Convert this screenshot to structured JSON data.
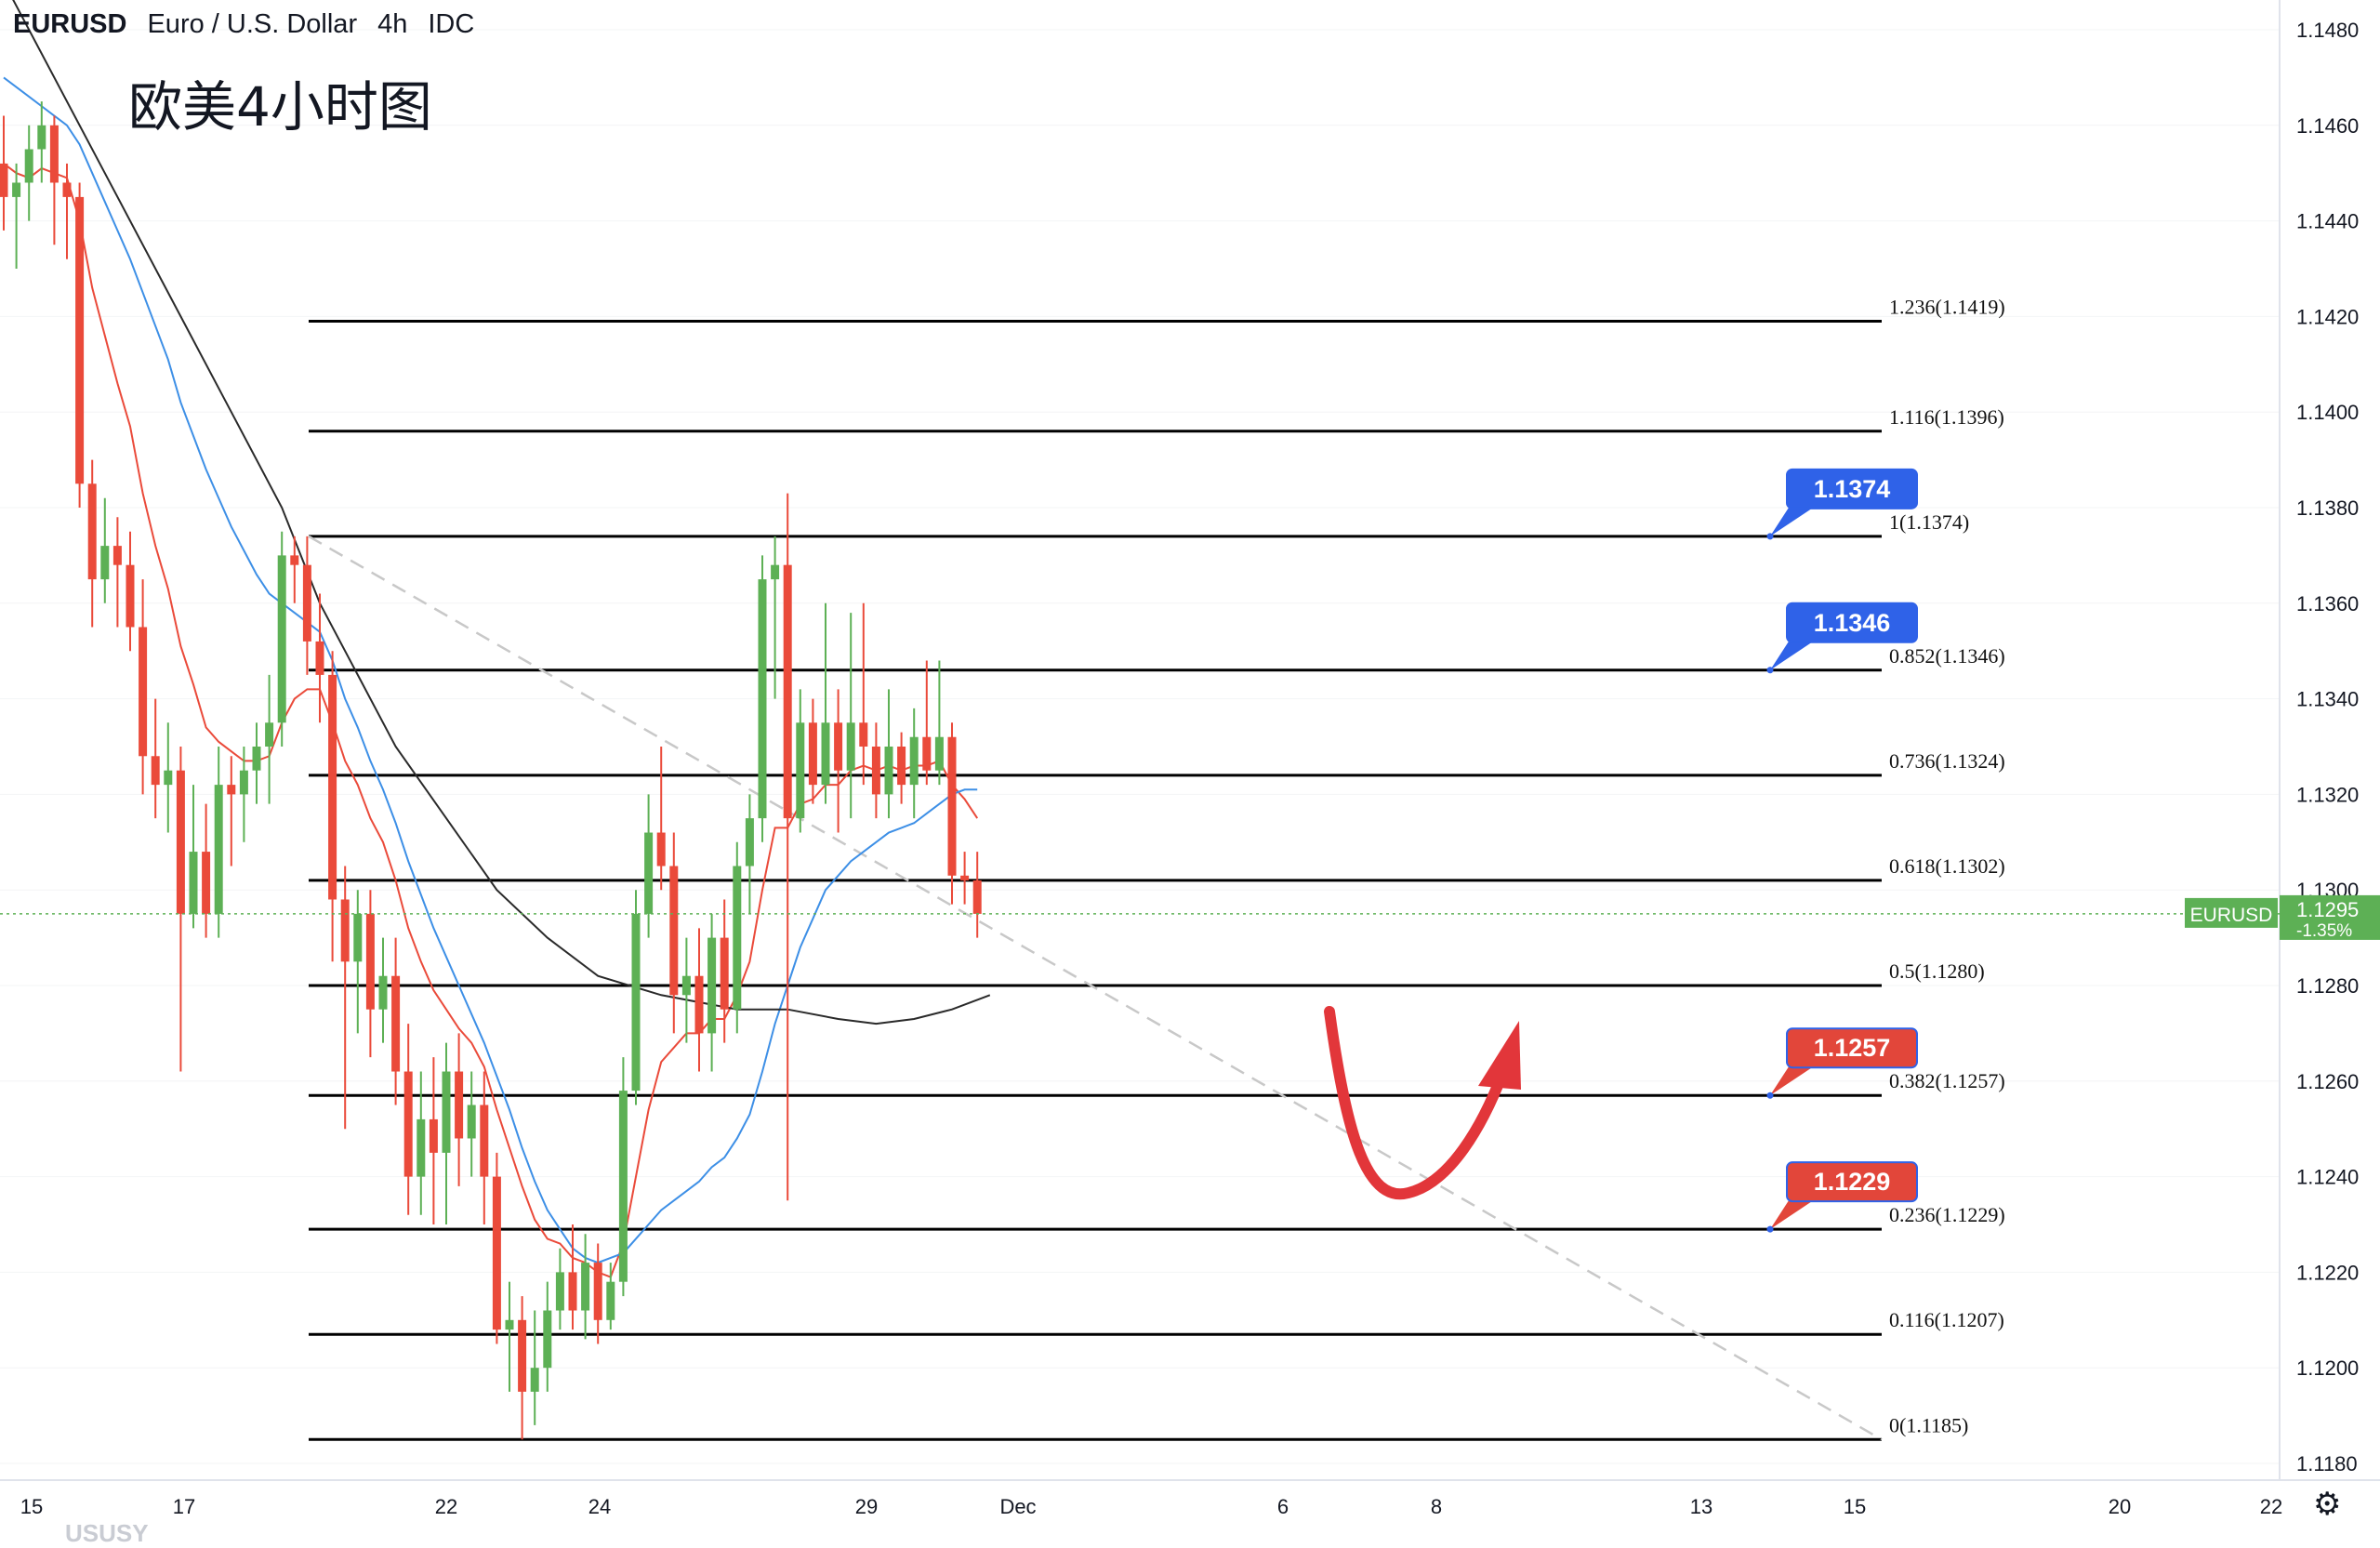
{
  "header": {
    "symbol": "EURUSD",
    "description": "Euro / U.S. Dollar",
    "interval": "4h",
    "source": "IDC"
  },
  "annotation_text": "欧美4小时图",
  "watermark": "USUSY",
  "settings_icon": "gear-icon",
  "colors": {
    "up": "#5db055",
    "down": "#ea4a3a",
    "ma_red": "#ea4a3a",
    "ma_blue": "#3d8fe6",
    "ma_black": "#2a2a2a",
    "fib_line": "#000000",
    "badge_blue": "#2f62e8",
    "badge_red": "#e2463a",
    "price_green": "#5db055"
  },
  "chart_data": {
    "type": "candlestick",
    "price_axis": {
      "min": 1.117,
      "max": 1.149,
      "ticks": [
        "1.1480",
        "1.1460",
        "1.1440",
        "1.1420",
        "1.1400",
        "1.1380",
        "1.1360",
        "1.1340",
        "1.1320",
        "1.1300",
        "1.1280",
        "1.1260",
        "1.1240",
        "1.1220",
        "1.1200",
        "1.1180"
      ]
    },
    "time_axis": {
      "labels": [
        "15",
        "17",
        "22",
        "24",
        "29",
        "Dec",
        "6",
        "8",
        "13",
        "15",
        "20",
        "22"
      ]
    },
    "candles": [
      [
        1.1452,
        1.1462,
        1.1438,
        1.1445
      ],
      [
        1.1445,
        1.1452,
        1.143,
        1.1448
      ],
      [
        1.1448,
        1.146,
        1.144,
        1.1455
      ],
      [
        1.1455,
        1.1465,
        1.1448,
        1.146
      ],
      [
        1.146,
        1.1462,
        1.1435,
        1.1448
      ],
      [
        1.1448,
        1.1452,
        1.1432,
        1.1445
      ],
      [
        1.1445,
        1.1448,
        1.138,
        1.1385
      ],
      [
        1.1385,
        1.139,
        1.1355,
        1.1365
      ],
      [
        1.1365,
        1.1382,
        1.136,
        1.1372
      ],
      [
        1.1372,
        1.1378,
        1.1355,
        1.1368
      ],
      [
        1.1368,
        1.1375,
        1.135,
        1.1355
      ],
      [
        1.1355,
        1.1365,
        1.132,
        1.1328
      ],
      [
        1.1328,
        1.134,
        1.1315,
        1.1322
      ],
      [
        1.1322,
        1.1335,
        1.1312,
        1.1325
      ],
      [
        1.1325,
        1.133,
        1.1262,
        1.1295
      ],
      [
        1.1295,
        1.1322,
        1.1292,
        1.1308
      ],
      [
        1.1308,
        1.1318,
        1.129,
        1.1295
      ],
      [
        1.1295,
        1.133,
        1.129,
        1.1322
      ],
      [
        1.1322,
        1.1328,
        1.1305,
        1.132
      ],
      [
        1.132,
        1.133,
        1.131,
        1.1325
      ],
      [
        1.1325,
        1.1335,
        1.1318,
        1.133
      ],
      [
        1.133,
        1.1345,
        1.1318,
        1.1335
      ],
      [
        1.1335,
        1.1375,
        1.133,
        1.137
      ],
      [
        1.137,
        1.1374,
        1.136,
        1.1368
      ],
      [
        1.1368,
        1.1374,
        1.1345,
        1.1352
      ],
      [
        1.1352,
        1.1362,
        1.1335,
        1.1345
      ],
      [
        1.1345,
        1.135,
        1.1285,
        1.1298
      ],
      [
        1.1298,
        1.1305,
        1.125,
        1.1285
      ],
      [
        1.1285,
        1.13,
        1.127,
        1.1295
      ],
      [
        1.1295,
        1.13,
        1.1265,
        1.1275
      ],
      [
        1.1275,
        1.129,
        1.1268,
        1.1282
      ],
      [
        1.1282,
        1.129,
        1.1255,
        1.1262
      ],
      [
        1.1262,
        1.1272,
        1.1232,
        1.124
      ],
      [
        1.124,
        1.1262,
        1.1232,
        1.1252
      ],
      [
        1.1252,
        1.1265,
        1.123,
        1.1245
      ],
      [
        1.1245,
        1.1268,
        1.123,
        1.1262
      ],
      [
        1.1262,
        1.127,
        1.1238,
        1.1248
      ],
      [
        1.1248,
        1.1262,
        1.124,
        1.1255
      ],
      [
        1.1255,
        1.1262,
        1.123,
        1.124
      ],
      [
        1.124,
        1.1245,
        1.1205,
        1.1208
      ],
      [
        1.1208,
        1.1218,
        1.1195,
        1.121
      ],
      [
        1.121,
        1.1215,
        1.1185,
        1.1195
      ],
      [
        1.1195,
        1.1212,
        1.1188,
        1.12
      ],
      [
        1.12,
        1.1218,
        1.1195,
        1.1212
      ],
      [
        1.1212,
        1.1225,
        1.1208,
        1.122
      ],
      [
        1.122,
        1.123,
        1.1208,
        1.1212
      ],
      [
        1.1212,
        1.1228,
        1.1206,
        1.1222
      ],
      [
        1.1222,
        1.1226,
        1.1205,
        1.121
      ],
      [
        1.121,
        1.1222,
        1.1208,
        1.1218
      ],
      [
        1.1218,
        1.1265,
        1.1215,
        1.1258
      ],
      [
        1.1258,
        1.13,
        1.1255,
        1.1295
      ],
      [
        1.1295,
        1.132,
        1.129,
        1.1312
      ],
      [
        1.1312,
        1.133,
        1.13,
        1.1305
      ],
      [
        1.1305,
        1.1312,
        1.127,
        1.1278
      ],
      [
        1.1278,
        1.129,
        1.1268,
        1.1282
      ],
      [
        1.1282,
        1.1292,
        1.1262,
        1.127
      ],
      [
        1.127,
        1.1295,
        1.1262,
        1.129
      ],
      [
        1.129,
        1.1298,
        1.1268,
        1.1275
      ],
      [
        1.1275,
        1.131,
        1.127,
        1.1305
      ],
      [
        1.1305,
        1.132,
        1.1295,
        1.1315
      ],
      [
        1.1315,
        1.137,
        1.131,
        1.1365
      ],
      [
        1.1365,
        1.1374,
        1.134,
        1.1368
      ],
      [
        1.1368,
        1.1383,
        1.1235,
        1.1315
      ],
      [
        1.1315,
        1.1342,
        1.1312,
        1.1335
      ],
      [
        1.1335,
        1.134,
        1.1318,
        1.1322
      ],
      [
        1.1322,
        1.136,
        1.1318,
        1.1335
      ],
      [
        1.1335,
        1.1342,
        1.1312,
        1.1325
      ],
      [
        1.1325,
        1.1358,
        1.1315,
        1.1335
      ],
      [
        1.1335,
        1.136,
        1.1322,
        1.133
      ],
      [
        1.133,
        1.1335,
        1.1315,
        1.132
      ],
      [
        1.132,
        1.1342,
        1.1315,
        1.133
      ],
      [
        1.133,
        1.1333,
        1.1318,
        1.1322
      ],
      [
        1.1322,
        1.1338,
        1.1315,
        1.1332
      ],
      [
        1.1332,
        1.1348,
        1.1322,
        1.1325
      ],
      [
        1.1325,
        1.1348,
        1.1322,
        1.1332
      ],
      [
        1.1332,
        1.1335,
        1.1297,
        1.1303
      ],
      [
        1.1303,
        1.1308,
        1.1297,
        1.1302
      ],
      [
        1.1302,
        1.1308,
        1.129,
        1.1295
      ]
    ],
    "moving_averages": [
      {
        "color_key": "ma_red",
        "values": [
          1.1452,
          1.145,
          1.1449,
          1.1451,
          1.145,
          1.1449,
          1.144,
          1.1426,
          1.1416,
          1.1406,
          1.1397,
          1.1383,
          1.1372,
          1.1363,
          1.1351,
          1.1343,
          1.1334,
          1.1331,
          1.1329,
          1.1327,
          1.1327,
          1.1328,
          1.1335,
          1.134,
          1.1342,
          1.1342,
          1.1335,
          1.1327,
          1.1322,
          1.1315,
          1.131,
          1.1302,
          1.1292,
          1.1285,
          1.1279,
          1.1275,
          1.1271,
          1.1268,
          1.1263,
          1.1254,
          1.1246,
          1.1238,
          1.1231,
          1.1227,
          1.1226,
          1.1223,
          1.1222,
          1.122,
          1.1219,
          1.1226,
          1.124,
          1.1254,
          1.1264,
          1.1267,
          1.127,
          1.127,
          1.1273,
          1.1273,
          1.1278,
          1.1285,
          1.13,
          1.1313,
          1.1313,
          1.1318,
          1.1319,
          1.1322,
          1.1322,
          1.1325,
          1.1326,
          1.1325,
          1.1326,
          1.1325,
          1.1326,
          1.1326,
          1.1327,
          1.1322,
          1.1319,
          1.1315
        ]
      },
      {
        "color_key": "ma_blue",
        "values": [
          1.147,
          1.1468,
          1.1466,
          1.1464,
          1.1462,
          1.146,
          1.1456,
          1.145,
          1.1444,
          1.1438,
          1.1432,
          1.1425,
          1.1418,
          1.1411,
          1.1402,
          1.1395,
          1.1388,
          1.1382,
          1.1376,
          1.1371,
          1.1366,
          1.1362,
          1.136,
          1.1358,
          1.1356,
          1.1354,
          1.1348,
          1.134,
          1.1334,
          1.1327,
          1.1321,
          1.1314,
          1.1306,
          1.1299,
          1.1292,
          1.1286,
          1.128,
          1.1274,
          1.1268,
          1.1261,
          1.1254,
          1.1246,
          1.1239,
          1.1233,
          1.1229,
          1.1225,
          1.1223,
          1.1222,
          1.1223,
          1.1224,
          1.1227,
          1.123,
          1.1233,
          1.1235,
          1.1237,
          1.1239,
          1.1242,
          1.1244,
          1.1248,
          1.1253,
          1.1262,
          1.1272,
          1.128,
          1.1288,
          1.1294,
          1.13,
          1.1303,
          1.1306,
          1.1308,
          1.131,
          1.1312,
          1.1313,
          1.1314,
          1.1316,
          1.1318,
          1.132,
          1.1321,
          1.1321
        ]
      },
      {
        "color_key": "ma_black",
        "points": [
          [
            1.149,
            0
          ],
          [
            1.145,
            8
          ],
          [
            1.142,
            14
          ],
          [
            1.14,
            18
          ],
          [
            1.138,
            22
          ],
          [
            1.136,
            25
          ],
          [
            1.1345,
            28
          ],
          [
            1.133,
            31
          ],
          [
            1.1315,
            35
          ],
          [
            1.13,
            39
          ],
          [
            1.129,
            43
          ],
          [
            1.1282,
            47
          ],
          [
            1.1278,
            52
          ],
          [
            1.1275,
            58
          ],
          [
            1.1275,
            62
          ],
          [
            1.1273,
            66
          ],
          [
            1.1272,
            69
          ],
          [
            1.1273,
            72
          ],
          [
            1.1275,
            75
          ],
          [
            1.1278,
            78
          ]
        ]
      }
    ],
    "trendline": {
      "from_price": 1.1374,
      "to_price": 1.1185,
      "style": "dashed",
      "color": "#c8c8c8"
    },
    "fibonacci": [
      {
        "label": "1.236(1.1419)",
        "price": 1.1419
      },
      {
        "label": "1.116(1.1396)",
        "price": 1.1396
      },
      {
        "label": "1(1.1374)",
        "price": 1.1374
      },
      {
        "label": "0.852(1.1346)",
        "price": 1.1346
      },
      {
        "label": "0.736(1.1324)",
        "price": 1.1324
      },
      {
        "label": "0.618(1.1302)",
        "price": 1.1302
      },
      {
        "label": "0.5(1.1280)",
        "price": 1.128
      },
      {
        "label": "0.382(1.1257)",
        "price": 1.1257
      },
      {
        "label": "0.236(1.1229)",
        "price": 1.1229
      },
      {
        "label": "0.116(1.1207)",
        "price": 1.1207
      },
      {
        "label": "0(1.1185)",
        "price": 1.1185
      }
    ],
    "badges": [
      {
        "text": "1.1374",
        "price": 1.1374,
        "color_key": "badge_blue"
      },
      {
        "text": "1.1346",
        "price": 1.1346,
        "color_key": "badge_blue"
      },
      {
        "text": "1.1257",
        "price": 1.1257,
        "color_key": "badge_red"
      },
      {
        "text": "1.1229",
        "price": 1.1229,
        "color_key": "badge_red"
      }
    ],
    "current_price": {
      "symbol": "EURUSD",
      "price": 1.1295,
      "price_text": "1.1295",
      "change_text": "-1.35%"
    },
    "arrow": {
      "color": "#e2363a",
      "shape": "u-turn-up"
    }
  }
}
